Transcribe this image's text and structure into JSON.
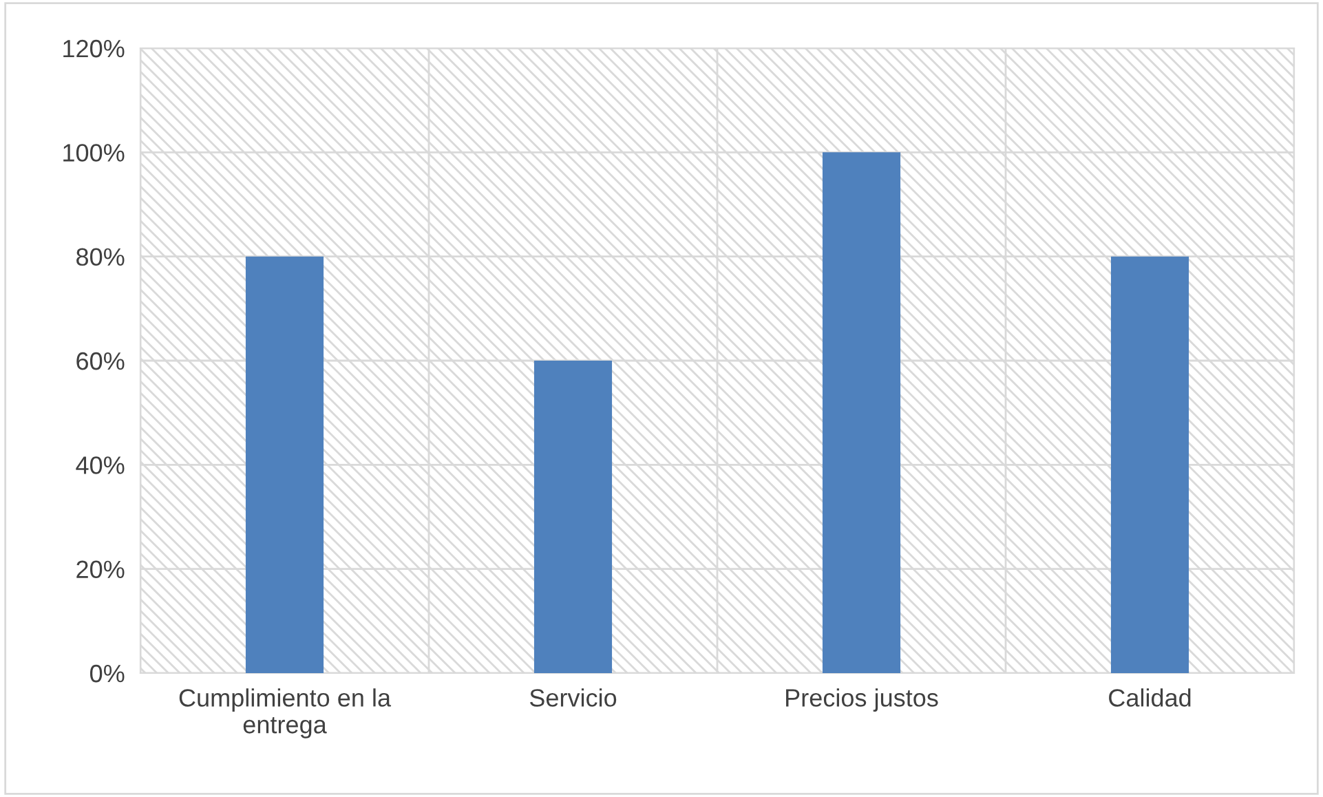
{
  "chart_data": {
    "type": "bar",
    "categories": [
      "Cumplimiento en la\nentrega",
      "Servicio",
      "Precios justos",
      "Calidad"
    ],
    "values": [
      80,
      60,
      100,
      80
    ],
    "color": "#4f81bd",
    "ylim": [
      0,
      120
    ],
    "yticks": [
      {
        "value": 0,
        "label": "0%"
      },
      {
        "value": 20,
        "label": "20%"
      },
      {
        "value": 40,
        "label": "40%"
      },
      {
        "value": 60,
        "label": "60%"
      },
      {
        "value": 80,
        "label": "80%"
      },
      {
        "value": 100,
        "label": "100%"
      },
      {
        "value": 120,
        "label": "120%"
      }
    ],
    "grid": true
  }
}
